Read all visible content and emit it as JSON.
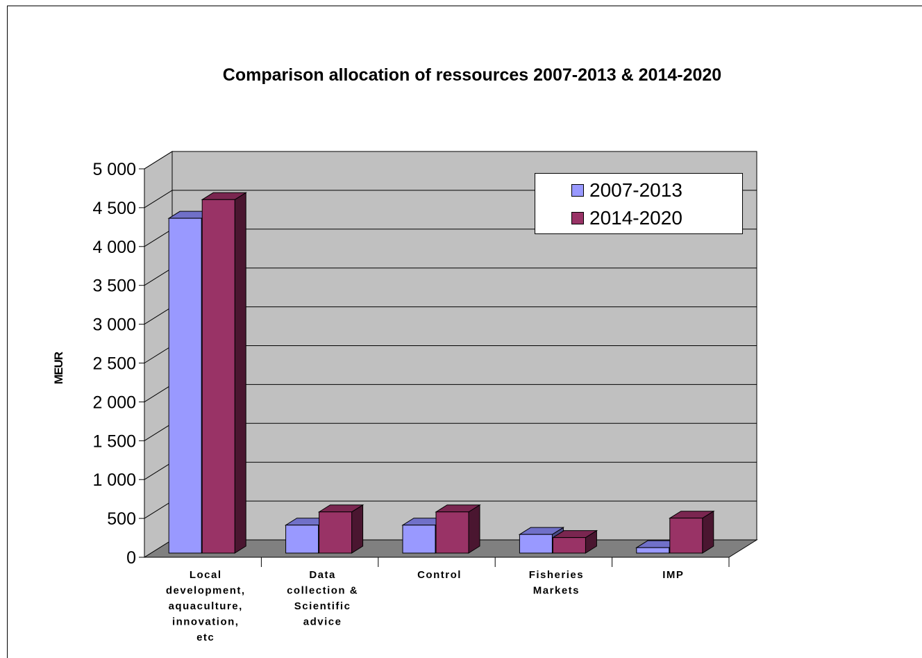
{
  "chart_data": {
    "type": "bar",
    "title": "Comparison allocation of ressources 2007-2013 & 2014-2020",
    "xlabel": "",
    "ylabel": "MEUR",
    "ylim": [
      0,
      5000
    ],
    "yticks": [
      "0",
      "500",
      "1 000",
      "1 500",
      "2 000",
      "2 500",
      "3 000",
      "3 500",
      "4 000",
      "4 500",
      "5 000"
    ],
    "categories": [
      [
        "Local",
        "development,",
        "aquaculture,",
        "innovation,",
        "etc"
      ],
      [
        "Data",
        "collection &",
        "Scientific",
        "advice"
      ],
      [
        "Control"
      ],
      [
        "Fisheries",
        "Markets"
      ],
      [
        "IMP"
      ]
    ],
    "series": [
      {
        "name": "2007-2013",
        "values": [
          4310,
          360,
          360,
          240,
          70
        ],
        "color": "#9999ff",
        "top_color": "#7070c8",
        "side_color": "#4b4b88"
      },
      {
        "name": "2014-2020",
        "values": [
          4550,
          530,
          530,
          200,
          450
        ],
        "color": "#993366",
        "top_color": "#7a2650",
        "side_color": "#4a1630"
      }
    ],
    "grid": true,
    "legend_position": "top-right",
    "wall_color": "#c0c0c0",
    "floor_color": "#808080"
  },
  "legend": {
    "items": [
      "2007-2013",
      "2014-2020"
    ]
  }
}
